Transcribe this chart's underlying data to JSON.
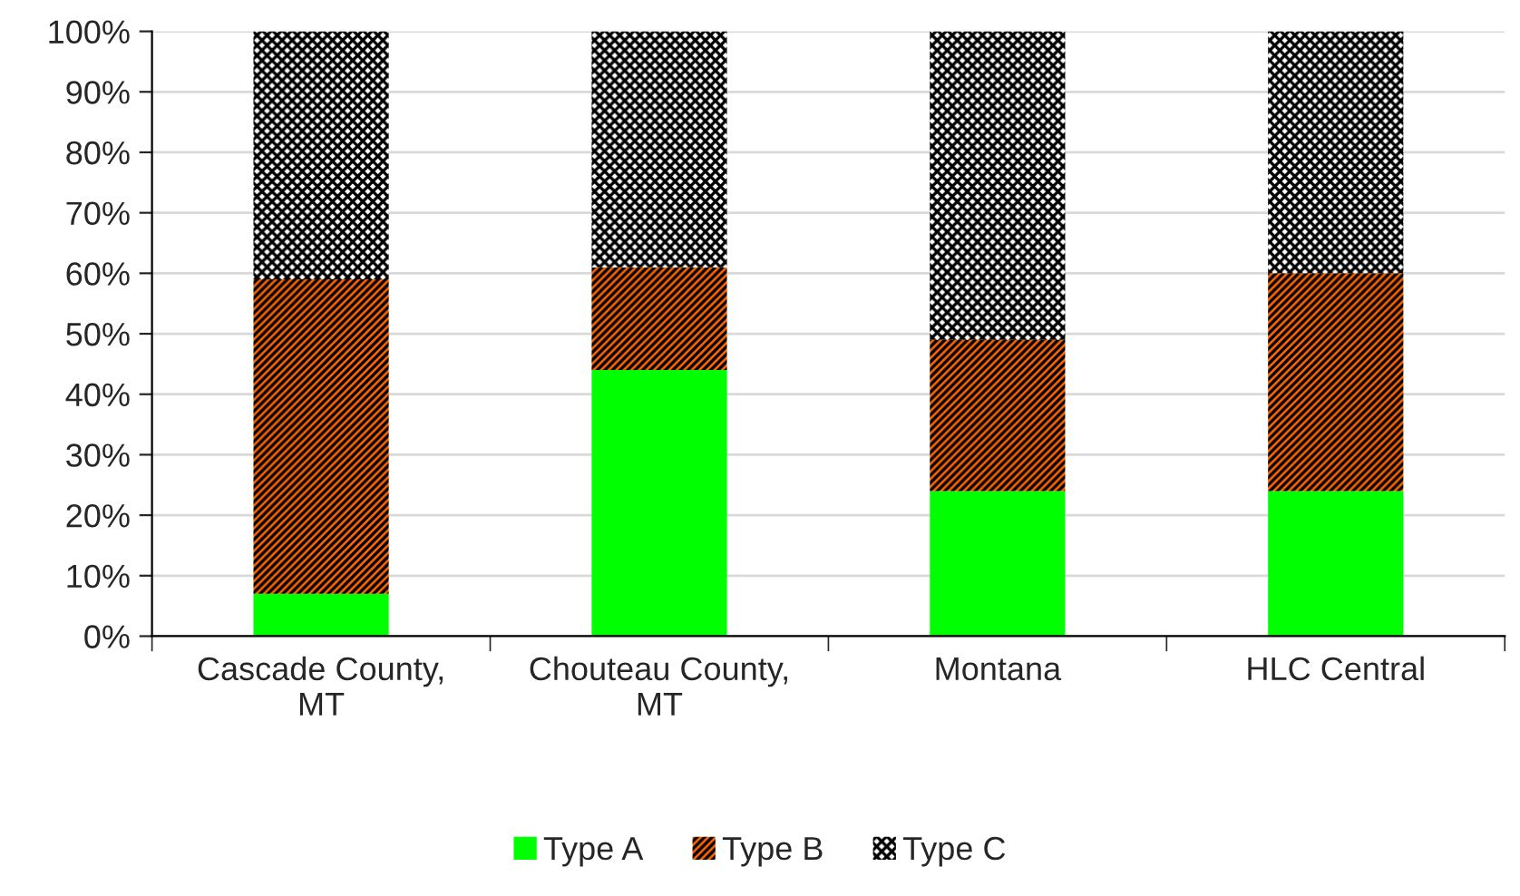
{
  "chart_data": {
    "type": "bar",
    "stacked": true,
    "categories": [
      "Cascade County,\nMT",
      "Chouteau County,\nMT",
      "Montana",
      "HLC Central"
    ],
    "series": [
      {
        "name": "Type A",
        "color": "#00ff00",
        "values": [
          7,
          44,
          24,
          24
        ]
      },
      {
        "name": "Type B",
        "color": "#ff6600",
        "values": [
          52,
          17,
          25,
          36
        ]
      },
      {
        "name": "Type C",
        "color": "#ffffff",
        "values": [
          41,
          39,
          51,
          40
        ]
      }
    ],
    "ylim": [
      0,
      100
    ],
    "yticks": [
      {
        "value": 0,
        "label": "0%"
      },
      {
        "value": 10,
        "label": "10%"
      },
      {
        "value": 20,
        "label": "20%"
      },
      {
        "value": 30,
        "label": "30%"
      },
      {
        "value": 40,
        "label": "40%"
      },
      {
        "value": 50,
        "label": "50%"
      },
      {
        "value": 60,
        "label": "60%"
      },
      {
        "value": 70,
        "label": "70%"
      },
      {
        "value": 80,
        "label": "80%"
      },
      {
        "value": 90,
        "label": "90%"
      },
      {
        "value": 100,
        "label": "100%"
      }
    ],
    "grid": "y",
    "legend": "bottom"
  }
}
